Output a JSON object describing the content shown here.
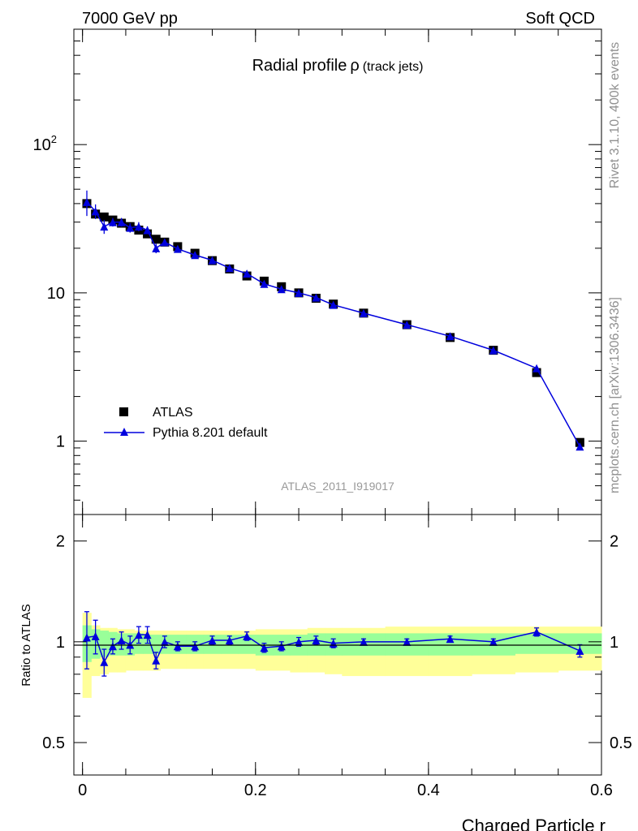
{
  "header": {
    "left": "7000 GeV pp",
    "right": "Soft QCD"
  },
  "side_text": {
    "top": "Rivet 3.1.10,  400k events",
    "bottom": "mcplots.cern.ch [arXiv:1306.3436]"
  },
  "chart_data": [
    {
      "type": "scatter",
      "title": "Radial profile",
      "title_symbol": "ρ",
      "title_suffix": "(track jets)",
      "watermark": "ATLAS_2011_I919017",
      "xlabel": "Charged Particle r",
      "ylabel": "",
      "xlim": [
        -0.01,
        0.6
      ],
      "ylim": [
        0.32,
        600
      ],
      "yscale": "log",
      "yticks": [
        {
          "value": 100,
          "label": "10",
          "exp": "2"
        },
        {
          "value": 10,
          "label": "10",
          "exp": ""
        },
        {
          "value": 1,
          "label": "1",
          "exp": ""
        }
      ],
      "legend": {
        "position": "bottom-left"
      },
      "series": [
        {
          "name": "ATLAS",
          "color": "#000000",
          "marker": "square",
          "x": [
            0.005,
            0.015,
            0.025,
            0.035,
            0.045,
            0.055,
            0.065,
            0.075,
            0.085,
            0.095,
            0.11,
            0.13,
            0.15,
            0.17,
            0.19,
            0.21,
            0.23,
            0.25,
            0.27,
            0.29,
            0.325,
            0.375,
            0.425,
            0.475,
            0.525,
            0.575
          ],
          "y": [
            40.0,
            34.0,
            32.5,
            31.0,
            29.5,
            28.0,
            26.5,
            25.0,
            23.0,
            22.0,
            20.5,
            18.5,
            16.5,
            14.5,
            13.0,
            12.0,
            11.0,
            10.0,
            9.2,
            8.4,
            7.3,
            6.1,
            5.0,
            4.1,
            2.9,
            0.98
          ]
        },
        {
          "name": "Pythia 8.201 default",
          "color": "#0000dd",
          "marker": "triangle",
          "x": [
            0.005,
            0.015,
            0.025,
            0.035,
            0.045,
            0.055,
            0.065,
            0.075,
            0.085,
            0.095,
            0.11,
            0.13,
            0.15,
            0.17,
            0.19,
            0.21,
            0.23,
            0.25,
            0.27,
            0.29,
            0.325,
            0.375,
            0.425,
            0.475,
            0.525,
            0.575
          ],
          "y": [
            41.0,
            35.5,
            28.0,
            30.0,
            30.0,
            27.5,
            28.0,
            26.5,
            20.0,
            22.0,
            19.8,
            18.0,
            16.6,
            14.7,
            13.5,
            11.5,
            10.6,
            10.0,
            9.3,
            8.3,
            7.3,
            6.1,
            5.1,
            4.1,
            3.1,
            0.92
          ],
          "yerr": [
            8.0,
            4.0,
            3.0,
            2.0,
            2.0,
            2.0,
            2.0,
            1.6,
            1.5,
            1.0,
            0.8,
            0.7,
            0.6,
            0.5,
            0.5,
            0.4,
            0.4,
            0.35,
            0.3,
            0.3,
            0.25,
            0.2,
            0.15,
            0.12,
            0.1,
            0.05
          ]
        }
      ]
    },
    {
      "type": "scatter",
      "title": "",
      "xlabel": "Charged Particle r",
      "ylabel": "Ratio to ATLAS",
      "xlim": [
        -0.01,
        0.6
      ],
      "ylim": [
        0.4,
        2.4
      ],
      "yscale": "log",
      "xticks": [
        {
          "value": 0,
          "label": "0"
        },
        {
          "value": 0.2,
          "label": "0.2"
        },
        {
          "value": 0.4,
          "label": "0.4"
        },
        {
          "value": 0.6,
          "label": "0.6"
        }
      ],
      "yticks": [
        {
          "value": 0.5,
          "label": "0.5"
        },
        {
          "value": 1,
          "label": "1"
        },
        {
          "value": 2,
          "label": "2"
        }
      ],
      "bins": [
        [
          0.0,
          0.01
        ],
        [
          0.01,
          0.02
        ],
        [
          0.02,
          0.03
        ],
        [
          0.03,
          0.04
        ],
        [
          0.04,
          0.05
        ],
        [
          0.05,
          0.06
        ],
        [
          0.06,
          0.07
        ],
        [
          0.07,
          0.08
        ],
        [
          0.08,
          0.09
        ],
        [
          0.09,
          0.1
        ],
        [
          0.1,
          0.12
        ],
        [
          0.12,
          0.14
        ],
        [
          0.14,
          0.16
        ],
        [
          0.16,
          0.18
        ],
        [
          0.18,
          0.2
        ],
        [
          0.2,
          0.22
        ],
        [
          0.22,
          0.24
        ],
        [
          0.24,
          0.26
        ],
        [
          0.26,
          0.28
        ],
        [
          0.28,
          0.3
        ],
        [
          0.3,
          0.35
        ],
        [
          0.35,
          0.4
        ],
        [
          0.4,
          0.45
        ],
        [
          0.45,
          0.5
        ],
        [
          0.5,
          0.55
        ],
        [
          0.55,
          0.6
        ]
      ],
      "band_yellow": [
        [
          0.68,
          1.22
        ],
        [
          0.79,
          1.12
        ],
        [
          0.8,
          1.1
        ],
        [
          0.81,
          1.1
        ],
        [
          0.81,
          1.09
        ],
        [
          0.82,
          1.09
        ],
        [
          0.82,
          1.08
        ],
        [
          0.82,
          1.08
        ],
        [
          0.82,
          1.08
        ],
        [
          0.83,
          1.08
        ],
        [
          0.83,
          1.08
        ],
        [
          0.83,
          1.08
        ],
        [
          0.83,
          1.08
        ],
        [
          0.83,
          1.08
        ],
        [
          0.83,
          1.08
        ],
        [
          0.82,
          1.09
        ],
        [
          0.82,
          1.09
        ],
        [
          0.81,
          1.09
        ],
        [
          0.81,
          1.1
        ],
        [
          0.8,
          1.1
        ],
        [
          0.79,
          1.1
        ],
        [
          0.79,
          1.11
        ],
        [
          0.79,
          1.11
        ],
        [
          0.8,
          1.11
        ],
        [
          0.81,
          1.11
        ],
        [
          0.82,
          1.11
        ]
      ],
      "band_green": [
        [
          0.87,
          1.12
        ],
        [
          0.89,
          1.09
        ],
        [
          0.9,
          1.08
        ],
        [
          0.91,
          1.07
        ],
        [
          0.91,
          1.06
        ],
        [
          0.91,
          1.06
        ],
        [
          0.92,
          1.06
        ],
        [
          0.92,
          1.05
        ],
        [
          0.92,
          1.05
        ],
        [
          0.92,
          1.05
        ],
        [
          0.92,
          1.05
        ],
        [
          0.92,
          1.05
        ],
        [
          0.92,
          1.05
        ],
        [
          0.92,
          1.05
        ],
        [
          0.92,
          1.05
        ],
        [
          0.91,
          1.05
        ],
        [
          0.91,
          1.05
        ],
        [
          0.91,
          1.05
        ],
        [
          0.91,
          1.06
        ],
        [
          0.91,
          1.06
        ],
        [
          0.91,
          1.06
        ],
        [
          0.91,
          1.06
        ],
        [
          0.91,
          1.06
        ],
        [
          0.91,
          1.06
        ],
        [
          0.92,
          1.06
        ],
        [
          0.92,
          1.06
        ]
      ],
      "series": [
        {
          "name": "Pythia 8.201 default",
          "color": "#0000dd",
          "marker": "triangle",
          "x": [
            0.005,
            0.015,
            0.025,
            0.035,
            0.045,
            0.055,
            0.065,
            0.075,
            0.085,
            0.095,
            0.11,
            0.13,
            0.15,
            0.17,
            0.19,
            0.21,
            0.23,
            0.25,
            0.27,
            0.29,
            0.325,
            0.375,
            0.425,
            0.475,
            0.525,
            0.575
          ],
          "y": [
            1.03,
            1.04,
            0.87,
            0.97,
            1.01,
            0.98,
            1.05,
            1.05,
            0.88,
            1.0,
            0.97,
            0.97,
            1.01,
            1.01,
            1.04,
            0.96,
            0.97,
            1.0,
            1.01,
            0.99,
            1.0,
            1.0,
            1.02,
            1.0,
            1.07,
            0.94
          ],
          "yerr": [
            0.2,
            0.12,
            0.08,
            0.05,
            0.06,
            0.06,
            0.06,
            0.06,
            0.05,
            0.04,
            0.03,
            0.03,
            0.03,
            0.03,
            0.03,
            0.03,
            0.03,
            0.03,
            0.03,
            0.03,
            0.02,
            0.02,
            0.02,
            0.02,
            0.03,
            0.04
          ]
        }
      ]
    }
  ]
}
